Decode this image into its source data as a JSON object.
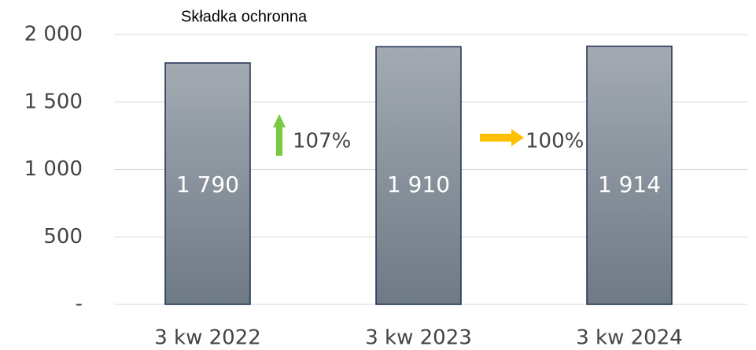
{
  "chart_data": {
    "type": "bar",
    "title": "Składka ochronna",
    "categories": [
      "3 kw 2022",
      "3 kw 2023",
      "3 kw 2024"
    ],
    "values": [
      1790,
      1910,
      1914
    ],
    "value_labels": [
      "1 790",
      "1 910",
      "1 914"
    ],
    "color": "#8a939c",
    "ylim": [
      0,
      2000
    ],
    "yticks": [
      {
        "value": 0,
        "label": "-"
      },
      500,
      {
        "value": 1000,
        "label": "1 000"
      },
      {
        "value": 1500,
        "label": "1 500"
      },
      {
        "value": 2000,
        "label": "2 000"
      }
    ],
    "grid": true,
    "annotations": [
      "107%",
      "100%"
    ]
  }
}
